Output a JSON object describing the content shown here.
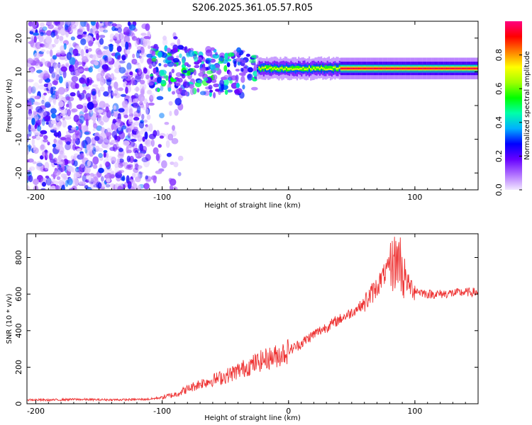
{
  "title": "S206.2025.361.05.57.R05",
  "chart_data": [
    {
      "type": "heatmap",
      "name": "spectrogram",
      "xlabel": "Height of straight line (km)",
      "ylabel": "Frequency (Hz)",
      "xlim": [
        -207,
        150
      ],
      "ylim": [
        -25,
        25
      ],
      "xticks": [
        -200,
        -100,
        0,
        100
      ],
      "yticks": [
        -20,
        -10,
        0,
        10,
        20
      ],
      "colorbar": {
        "label": "Normalized spectral amplitude",
        "range": [
          0.0,
          1.0
        ],
        "ticks": [
          0.0,
          0.2,
          0.4,
          0.6,
          0.8
        ],
        "tick_labels": [
          "0.0",
          "0.2",
          "0.4",
          "0.6",
          "0.8"
        ],
        "colors": [
          "#f2e8ff",
          "#b070ff",
          "#6600ff",
          "#0000ff",
          "#00b0ff",
          "#00ffaa",
          "#00ff00",
          "#a0ff00",
          "#ffff00",
          "#ff8000",
          "#ff0000",
          "#ff0080"
        ]
      },
      "signal_band": {
        "frequency_hz": 11,
        "x_start_km": -110,
        "x_end_km": 150,
        "description_levels": [
          {
            "x_from": -110,
            "x_to": -25,
            "peak_amplitude": 0.35
          },
          {
            "x_from": -25,
            "x_to": 40,
            "peak_amplitude": 0.7
          },
          {
            "x_from": 40,
            "x_to": 150,
            "peak_amplitude": 0.95
          }
        ]
      }
    },
    {
      "type": "line",
      "name": "snr",
      "xlabel": "Height of straight line (km)",
      "ylabel": "SNR (10 * v/v)",
      "xlim": [
        -207,
        150
      ],
      "ylim": [
        0,
        930
      ],
      "xticks": [
        -200,
        -100,
        0,
        100
      ],
      "yticks": [
        0,
        200,
        400,
        600,
        800
      ],
      "color": "#ee3333",
      "series": [
        {
          "name": "SNR",
          "x": [
            -207,
            -190,
            -170,
            -150,
            -130,
            -110,
            -100,
            -90,
            -80,
            -70,
            -60,
            -50,
            -40,
            -30,
            -20,
            -10,
            0,
            10,
            20,
            30,
            40,
            50,
            60,
            70,
            75,
            80,
            85,
            88,
            90,
            95,
            100,
            110,
            120,
            130,
            140,
            150
          ],
          "y": [
            22,
            20,
            24,
            22,
            22,
            25,
            35,
            50,
            80,
            110,
            130,
            150,
            180,
            210,
            240,
            260,
            290,
            330,
            380,
            420,
            460,
            500,
            550,
            640,
            700,
            750,
            780,
            800,
            720,
            650,
            620,
            600,
            600,
            605,
            610,
            610
          ]
        }
      ]
    }
  ]
}
